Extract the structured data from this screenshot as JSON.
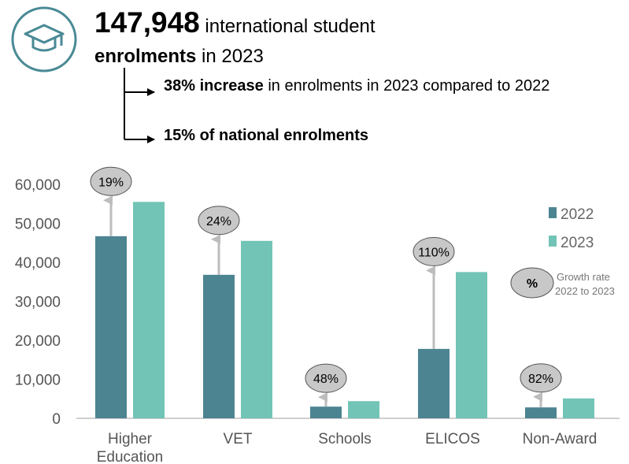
{
  "header": {
    "total": "147,948",
    "line1_rest": "international student",
    "line2_bold": "enrolments",
    "line2_rest": "in 2023",
    "icon": "graduation-cap-icon",
    "accent": "#4a8a96"
  },
  "bullets": [
    {
      "bold": "38% increase",
      "text": "in enrolments in 2023 compared to 2022"
    },
    {
      "bold": "15% of national enrolments",
      "text": ""
    }
  ],
  "legend_note": {
    "symbol": "%",
    "line1": "Growth rate",
    "line2": "2022 to 2023"
  },
  "chart_data": {
    "type": "bar",
    "categories": [
      "Higher\nEducation",
      "VET",
      "Schools",
      "ELICOS",
      "Non-Award"
    ],
    "series": [
      {
        "name": "2022",
        "color": "#4d8491",
        "values": [
          46700,
          36800,
          3000,
          17800,
          2800
        ]
      },
      {
        "name": "2023",
        "color": "#71c4b6",
        "values": [
          55500,
          45500,
          4400,
          37500,
          5100
        ]
      }
    ],
    "growth_labels": [
      "19%",
      "24%",
      "48%",
      "110%",
      "82%"
    ],
    "yticks": [
      "0",
      "10,000",
      "20,000",
      "30,000",
      "40,000",
      "50,000",
      "60,000"
    ],
    "ylim": [
      0,
      60000
    ],
    "legend_position": "right",
    "grid": false
  }
}
